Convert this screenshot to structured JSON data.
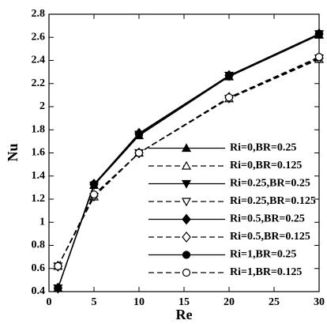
{
  "chart_data": {
    "type": "line",
    "x_label": "Re",
    "y_label": "Nu",
    "x": [
      1,
      5,
      10,
      20,
      30
    ],
    "series": [
      {
        "name": "Ri=0,BR=0.25",
        "color": "#000000",
        "style": "solid",
        "marker": "triangle-up",
        "filled": true,
        "values": [
          0.43,
          1.32,
          1.75,
          2.26,
          2.62
        ]
      },
      {
        "name": "Ri=0,BR=0.125",
        "color": "#000000",
        "style": "dashed",
        "marker": "triangle-up",
        "filled": false,
        "values": [
          0.62,
          1.22,
          1.6,
          2.07,
          2.41
        ]
      },
      {
        "name": "Ri=0.25,BR=0.25",
        "color": "#000000",
        "style": "solid",
        "marker": "triangle-down",
        "filled": true,
        "values": [
          0.43,
          1.32,
          1.76,
          2.27,
          2.63
        ]
      },
      {
        "name": "Ri=0.25,BR=0.125",
        "color": "#000000",
        "style": "dashed",
        "marker": "triangle-down",
        "filled": false,
        "values": [
          0.62,
          1.22,
          1.6,
          2.07,
          2.42
        ]
      },
      {
        "name": "Ri=0.5,BR=0.25",
        "color": "#000000",
        "style": "solid",
        "marker": "diamond",
        "filled": true,
        "values": [
          0.43,
          1.33,
          1.77,
          2.27,
          2.63
        ]
      },
      {
        "name": "Ri=0.5,BR=0.125",
        "color": "#000000",
        "style": "dashed",
        "marker": "diamond",
        "filled": false,
        "values": [
          0.62,
          1.23,
          1.6,
          2.08,
          2.42
        ]
      },
      {
        "name": "Ri=1,BR=0.25",
        "color": "#000000",
        "style": "solid",
        "marker": "circle",
        "filled": true,
        "values": [
          0.43,
          1.33,
          1.76,
          2.27,
          2.63
        ]
      },
      {
        "name": "Ri=1,BR=0.125",
        "color": "#000000",
        "style": "dashed",
        "marker": "circle",
        "filled": false,
        "values": [
          0.62,
          1.24,
          1.6,
          2.08,
          2.43
        ]
      }
    ],
    "xlim": [
      0,
      30
    ],
    "xticks": [
      0,
      5,
      10,
      15,
      20,
      25,
      30
    ],
    "ylim": [
      0.4,
      2.8
    ],
    "yticks": [
      0.4,
      0.6,
      0.8,
      1,
      1.2,
      1.4,
      1.6,
      1.8,
      2,
      2.2,
      2.4,
      2.6,
      2.8
    ],
    "grid": false,
    "legend": "lower-right"
  }
}
